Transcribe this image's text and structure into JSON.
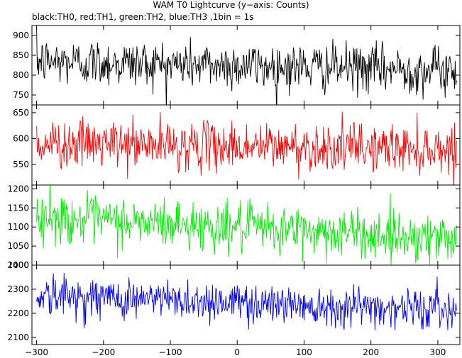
{
  "chart_data": {
    "type": "line",
    "title": "WAM T0 Lightcurve (y−axis: Counts)",
    "subtitle": "black:TH0, red:TH1, green:TH2, blue:TH3 ,1bin = 1s",
    "xlim": [
      -307,
      333
    ],
    "x_ticks": [
      -300,
      -200,
      -100,
      0,
      100,
      200,
      300
    ],
    "x_tick_labels": [
      "−300",
      "−200",
      "−100",
      "0",
      "100",
      "200",
      "300"
    ],
    "x_range_data": [
      -300,
      328
    ],
    "series": [
      {
        "name": "TH0",
        "color": "#000000",
        "ylim": [
          725,
          925
        ],
        "y_ticks": [
          750,
          800,
          850,
          900
        ],
        "y_tick_labels": [
          "750",
          "800",
          "850",
          "900"
        ],
        "mean_start": 835,
        "mean_end": 812,
        "spread": 30
      },
      {
        "name": "TH1",
        "color": "#ff0000",
        "ylim": [
          510,
          665
        ],
        "y_ticks": [
          550,
          600,
          650
        ],
        "y_tick_labels": [
          "550",
          "600",
          "650"
        ],
        "mean_start": 590,
        "mean_end": 580,
        "spread": 23
      },
      {
        "name": "TH2",
        "color": "#00ee00",
        "ylim": [
          1000,
          1210
        ],
        "y_ticks": [
          1000,
          1050,
          1100,
          1150,
          1200
        ],
        "y_tick_labels": [
          "1000",
          "1050",
          "1100",
          "1150",
          "1200"
        ],
        "mean_start": 1125,
        "mean_end": 1070,
        "spread": 32
      },
      {
        "name": "TH3",
        "color": "#0000ff",
        "ylim": [
          2070,
          2400
        ],
        "y_ticks": [
          2100,
          2200,
          2300,
          2400
        ],
        "y_tick_labels": [
          "2100",
          "2200",
          "2300",
          "2400"
        ],
        "mean_start": 2275,
        "mean_end": 2215,
        "spread": 42
      }
    ]
  }
}
